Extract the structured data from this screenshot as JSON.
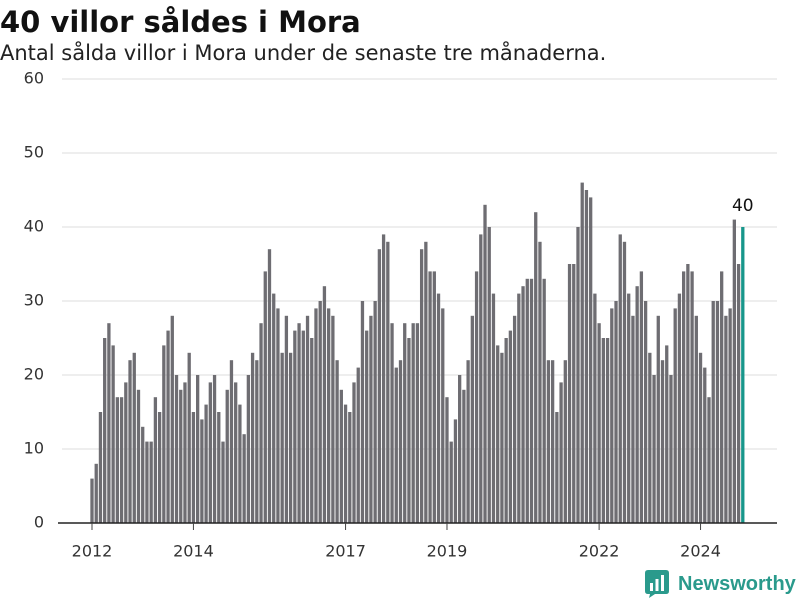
{
  "brand": {
    "name": "Newsworthy",
    "icon": "newsworthy-logo-icon",
    "color": "#2a9a8c"
  },
  "colors": {
    "bar": "#6e6d72",
    "highlight": "#18968b",
    "grid": "#dcdcdc",
    "axis": "#222222",
    "tick_text": "#333333"
  },
  "chart_data": {
    "type": "bar",
    "title": "40 villor såldes i Mora",
    "subtitle": "Antal sålda villor i Mora under de senaste tre månaderna.",
    "xlabel": "",
    "ylabel": "",
    "ylim": [
      0,
      60
    ],
    "yticks": [
      0,
      10,
      20,
      30,
      40,
      50,
      60
    ],
    "xticks": [
      "2012",
      "2014",
      "2017",
      "2019",
      "2022",
      "2024"
    ],
    "grid": true,
    "legend": "none",
    "highlight": {
      "x": "2024-11",
      "label": "40"
    },
    "x": [
      "2012-01",
      "2012-02",
      "2012-03",
      "2012-04",
      "2012-05",
      "2012-06",
      "2012-07",
      "2012-08",
      "2012-09",
      "2012-10",
      "2012-11",
      "2012-12",
      "2013-01",
      "2013-02",
      "2013-03",
      "2013-04",
      "2013-05",
      "2013-06",
      "2013-07",
      "2013-08",
      "2013-09",
      "2013-10",
      "2013-11",
      "2013-12",
      "2014-01",
      "2014-02",
      "2014-03",
      "2014-04",
      "2014-05",
      "2014-06",
      "2014-07",
      "2014-08",
      "2014-09",
      "2014-10",
      "2014-11",
      "2014-12",
      "2015-01",
      "2015-02",
      "2015-03",
      "2015-04",
      "2015-05",
      "2015-06",
      "2015-07",
      "2015-08",
      "2015-09",
      "2015-10",
      "2015-11",
      "2015-12",
      "2016-01",
      "2016-02",
      "2016-03",
      "2016-04",
      "2016-05",
      "2016-06",
      "2016-07",
      "2016-08",
      "2016-09",
      "2016-10",
      "2016-11",
      "2016-12",
      "2017-01",
      "2017-02",
      "2017-03",
      "2017-04",
      "2017-05",
      "2017-06",
      "2017-07",
      "2017-08",
      "2017-09",
      "2017-10",
      "2017-11",
      "2017-12",
      "2018-01",
      "2018-02",
      "2018-03",
      "2018-04",
      "2018-05",
      "2018-06",
      "2018-07",
      "2018-08",
      "2018-09",
      "2018-10",
      "2018-11",
      "2018-12",
      "2019-01",
      "2019-02",
      "2019-03",
      "2019-04",
      "2019-05",
      "2019-06",
      "2019-07",
      "2019-08",
      "2019-09",
      "2019-10",
      "2019-11",
      "2019-12",
      "2020-01",
      "2020-02",
      "2020-03",
      "2020-04",
      "2020-05",
      "2020-06",
      "2020-07",
      "2020-08",
      "2020-09",
      "2020-10",
      "2020-11",
      "2020-12",
      "2021-01",
      "2021-02",
      "2021-03",
      "2021-04",
      "2021-05",
      "2021-06",
      "2021-07",
      "2021-08",
      "2021-09",
      "2021-10",
      "2021-11",
      "2021-12",
      "2022-01",
      "2022-02",
      "2022-03",
      "2022-04",
      "2022-05",
      "2022-06",
      "2022-07",
      "2022-08",
      "2022-09",
      "2022-10",
      "2022-11",
      "2022-12",
      "2023-01",
      "2023-02",
      "2023-03",
      "2023-04",
      "2023-05",
      "2023-06",
      "2023-07",
      "2023-08",
      "2023-09",
      "2023-10",
      "2023-11",
      "2023-12",
      "2024-01",
      "2024-02",
      "2024-03",
      "2024-04",
      "2024-05",
      "2024-06",
      "2024-07",
      "2024-08",
      "2024-09",
      "2024-10",
      "2024-11"
    ],
    "values": [
      6,
      8,
      15,
      25,
      27,
      24,
      17,
      17,
      19,
      22,
      23,
      18,
      13,
      11,
      11,
      17,
      15,
      24,
      26,
      28,
      20,
      18,
      19,
      23,
      15,
      20,
      14,
      16,
      19,
      20,
      15,
      11,
      18,
      22,
      19,
      16,
      12,
      20,
      23,
      22,
      27,
      34,
      37,
      31,
      29,
      23,
      28,
      23,
      26,
      27,
      26,
      28,
      25,
      29,
      30,
      32,
      29,
      28,
      22,
      18,
      16,
      15,
      19,
      21,
      30,
      26,
      28,
      30,
      37,
      39,
      38,
      27,
      21,
      22,
      27,
      25,
      27,
      27,
      37,
      38,
      34,
      34,
      31,
      29,
      17,
      11,
      14,
      20,
      18,
      22,
      28,
      34,
      39,
      43,
      40,
      31,
      24,
      23,
      25,
      26,
      28,
      31,
      32,
      33,
      33,
      42,
      38,
      33,
      22,
      22,
      15,
      19,
      22,
      35,
      35,
      40,
      46,
      45,
      44,
      31,
      27,
      25,
      25,
      29,
      30,
      39,
      38,
      31,
      28,
      32,
      34,
      30,
      23,
      20,
      28,
      22,
      24,
      20,
      29,
      31,
      34,
      35,
      34,
      28,
      23,
      21,
      17,
      30,
      30,
      34,
      28,
      29,
      41,
      35,
      40
    ]
  }
}
